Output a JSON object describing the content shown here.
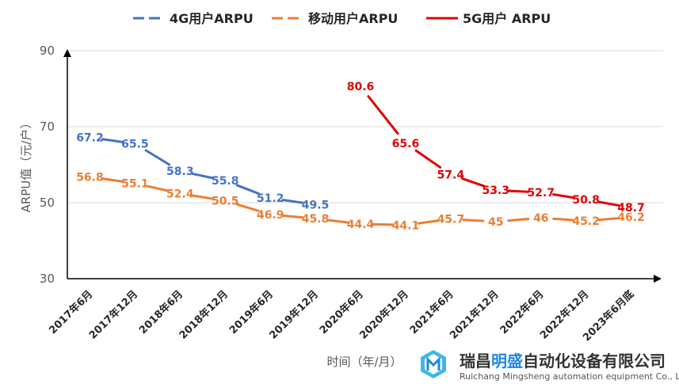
{
  "chart_data": {
    "type": "line",
    "categories": [
      "2017年6月",
      "2017年12月",
      "2018年6月",
      "2018年12月",
      "2019年6月",
      "2019年12月",
      "2020年6月",
      "2020年12月",
      "2021年6月",
      "2021年12月",
      "2022年6月",
      "2022年12月",
      "2023年6月底"
    ],
    "series": [
      {
        "name": "4G用户ARPU",
        "color": "#4472C4",
        "dash": true,
        "values": [
          67.2,
          65.5,
          58.3,
          55.8,
          51.2,
          49.5,
          null,
          null,
          null,
          null,
          null,
          null,
          null
        ],
        "labels": [
          "67.2",
          "65.5",
          "58.3",
          "55.8",
          "51.2",
          "49.5",
          "",
          "",
          "",
          "",
          "",
          "",
          ""
        ]
      },
      {
        "name": "移动用户ARPU",
        "color": "#ED7D31",
        "dash": true,
        "values": [
          56.8,
          55.1,
          52.4,
          50.5,
          46.9,
          45.8,
          44.4,
          44.1,
          45.7,
          45,
          46,
          45.2,
          46.2
        ],
        "labels": [
          "56.8",
          "55.1",
          "52.4",
          "50.5",
          "46.9",
          "45.8",
          "44.4",
          "44.1",
          "45.7",
          "45",
          "46",
          "45.2",
          "46.2"
        ]
      },
      {
        "name": "5G用户 ARPU",
        "color": "#E00000",
        "dash": false,
        "values": [
          null,
          null,
          null,
          null,
          null,
          null,
          80.6,
          65.6,
          57.4,
          53.3,
          52.7,
          50.8,
          48.7
        ],
        "labels": [
          "",
          "",
          "",
          "",
          "",
          "",
          "80.6",
          "65.6",
          "57.4",
          "53.3",
          "52.7",
          "50.8",
          "48.7"
        ]
      }
    ],
    "xlabel": "时间（年/月）",
    "ylabel": "ARPU值（元/户）",
    "ylim": [
      30,
      90
    ],
    "yticks": [
      "30",
      "50",
      "70",
      "90"
    ],
    "grid": true,
    "legend_position": "top"
  },
  "watermark": {
    "name_prefix": "瑞昌",
    "name_highlight": "明盛",
    "name_suffix": "自动化设备有限公司",
    "english": "Ruichang Mingsheng automation equipment Co., Ltd",
    "highlight_color": "#1E88E5",
    "icon": "company-logo-icon"
  }
}
